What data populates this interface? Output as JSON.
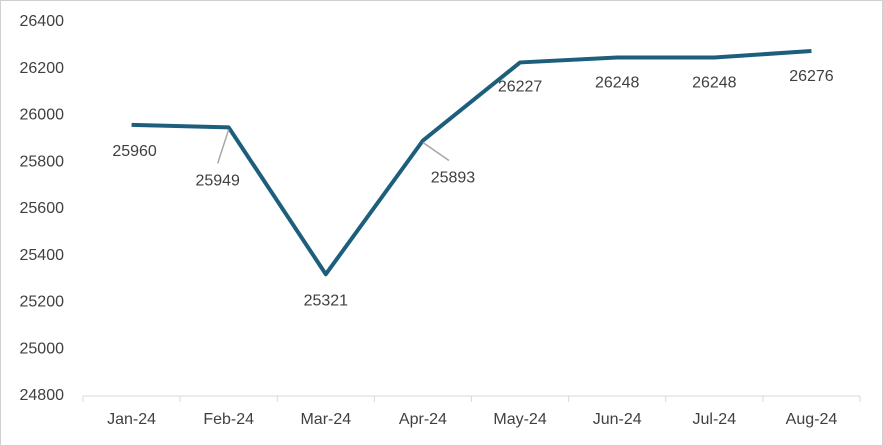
{
  "chart_data": {
    "type": "line",
    "categories": [
      "Jan-24",
      "Feb-24",
      "Mar-24",
      "Apr-24",
      "May-24",
      "Jun-24",
      "Jul-24",
      "Aug-24"
    ],
    "values": [
      25960,
      25949,
      25321,
      25893,
      26227,
      26248,
      26248,
      26276
    ],
    "color": "#1d5e7c",
    "ylim": [
      24800,
      26400
    ],
    "yticks": [
      24800,
      25000,
      25200,
      25400,
      25600,
      25800,
      26000,
      26200,
      26400
    ],
    "grid": false
  }
}
